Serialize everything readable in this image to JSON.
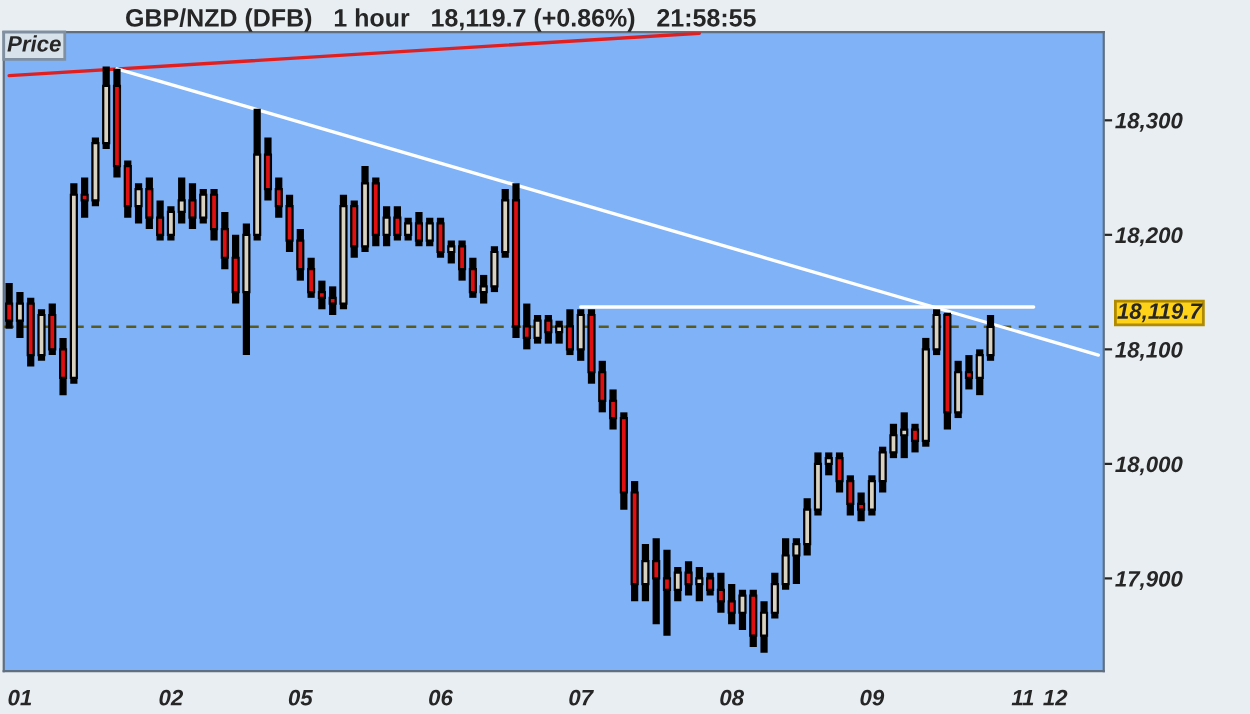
{
  "chart_data": {
    "type": "candlestick",
    "title": "GBP/NZD (DFB)   1 hour   18,119.7 (+0.86%)   21:58:55",
    "annotations": [
      "Price"
    ],
    "categories": [
      null,
      "01",
      null,
      null,
      null,
      null,
      null,
      null,
      null,
      null,
      null,
      null,
      null,
      null,
      null,
      "02",
      null,
      null,
      null,
      null,
      null,
      null,
      null,
      null,
      null,
      null,
      null,
      "05",
      null,
      null,
      null,
      null,
      null,
      null,
      null,
      null,
      null,
      null,
      null,
      null,
      "06",
      null,
      null,
      null,
      null,
      null,
      null,
      null,
      null,
      null,
      null,
      null,
      null,
      "07",
      null,
      null,
      null,
      null,
      null,
      null,
      null,
      null,
      null,
      null,
      null,
      null,
      null,
      "08",
      null,
      null,
      null,
      null,
      null,
      null,
      null,
      null,
      null,
      null,
      null,
      null,
      "09",
      null,
      null,
      null,
      null,
      null,
      null,
      null,
      null,
      null,
      null,
      null,
      null,
      null,
      "11",
      null,
      null,
      "12",
      null,
      null,
      null,
      null
    ],
    "ohlc": [
      [
        18140,
        18158,
        18118,
        18125
      ],
      [
        18125,
        18150,
        18110,
        18140
      ],
      [
        18140,
        18145,
        18085,
        18095
      ],
      [
        18095,
        18135,
        18090,
        18130
      ],
      [
        18130,
        18140,
        18095,
        18100
      ],
      [
        18100,
        18110,
        18060,
        18075
      ],
      [
        18075,
        18245,
        18070,
        18235
      ],
      [
        18235,
        18250,
        18215,
        18230
      ],
      [
        18230,
        18285,
        18225,
        18280
      ],
      [
        18280,
        18347,
        18275,
        18330
      ],
      [
        18330,
        18345,
        18250,
        18260
      ],
      [
        18260,
        18265,
        18215,
        18225
      ],
      [
        18225,
        18245,
        18210,
        18240
      ],
      [
        18240,
        18250,
        18205,
        18215
      ],
      [
        18215,
        18230,
        18195,
        18200
      ],
      [
        18200,
        18225,
        18195,
        18220
      ],
      [
        18220,
        18250,
        18210,
        18230
      ],
      [
        18230,
        18245,
        18205,
        18215
      ],
      [
        18215,
        18240,
        18210,
        18235
      ],
      [
        18235,
        18240,
        18195,
        18205
      ],
      [
        18205,
        18220,
        18170,
        18180
      ],
      [
        18180,
        18200,
        18140,
        18150
      ],
      [
        18150,
        18210,
        18095,
        18200
      ],
      [
        18200,
        18310,
        18195,
        18270
      ],
      [
        18270,
        18285,
        18230,
        18240
      ],
      [
        18240,
        18250,
        18215,
        18225
      ],
      [
        18225,
        18235,
        18185,
        18195
      ],
      [
        18195,
        18205,
        18160,
        18170
      ],
      [
        18170,
        18180,
        18145,
        18150
      ],
      [
        18150,
        18160,
        18135,
        18145
      ],
      [
        18145,
        18155,
        18130,
        18140
      ],
      [
        18140,
        18235,
        18135,
        18225
      ],
      [
        18225,
        18230,
        18180,
        18190
      ],
      [
        18190,
        18260,
        18185,
        18245
      ],
      [
        18245,
        18250,
        18190,
        18200
      ],
      [
        18200,
        18225,
        18190,
        18215
      ],
      [
        18215,
        18225,
        18195,
        18200
      ],
      [
        18200,
        18215,
        18195,
        18210
      ],
      [
        18210,
        18220,
        18190,
        18195
      ],
      [
        18195,
        18215,
        18190,
        18210
      ],
      [
        18210,
        18215,
        18180,
        18185
      ],
      [
        18185,
        18195,
        18175,
        18190
      ],
      [
        18190,
        18195,
        18160,
        18170
      ],
      [
        18170,
        18180,
        18145,
        18150
      ],
      [
        18150,
        18165,
        18140,
        18155
      ],
      [
        18155,
        18190,
        18150,
        18185
      ],
      [
        18185,
        18240,
        18180,
        18230
      ],
      [
        18230,
        18245,
        18110,
        18120
      ],
      [
        18120,
        18140,
        18100,
        18110
      ],
      [
        18110,
        18130,
        18105,
        18125
      ],
      [
        18125,
        18130,
        18105,
        18115
      ],
      [
        18115,
        18125,
        18105,
        18120
      ],
      [
        18120,
        18135,
        18095,
        18100
      ],
      [
        18100,
        18135,
        18090,
        18130
      ],
      [
        18130,
        18135,
        18070,
        18080
      ],
      [
        18080,
        18090,
        18045,
        18055
      ],
      [
        18055,
        18065,
        18030,
        18040
      ],
      [
        18040,
        18045,
        17960,
        17975
      ],
      [
        17975,
        17985,
        17880,
        17895
      ],
      [
        17895,
        17930,
        17880,
        17915
      ],
      [
        17915,
        17935,
        17860,
        17900
      ],
      [
        17900,
        17925,
        17850,
        17890
      ],
      [
        17890,
        17910,
        17880,
        17905
      ],
      [
        17905,
        17915,
        17885,
        17895
      ],
      [
        17895,
        17910,
        17880,
        17900
      ],
      [
        17900,
        17905,
        17885,
        17890
      ],
      [
        17890,
        17905,
        17870,
        17880
      ],
      [
        17880,
        17895,
        17860,
        17870
      ],
      [
        17870,
        17890,
        17855,
        17885
      ],
      [
        17885,
        17890,
        17840,
        17850
      ],
      [
        17850,
        17880,
        17835,
        17870
      ],
      [
        17870,
        17905,
        17865,
        17895
      ],
      [
        17895,
        17935,
        17890,
        17920
      ],
      [
        17920,
        17935,
        17895,
        17930
      ],
      [
        17930,
        17970,
        17920,
        17960
      ],
      [
        17960,
        18010,
        17955,
        18000
      ],
      [
        18000,
        18010,
        17990,
        18005
      ],
      [
        18005,
        18010,
        17975,
        17985
      ],
      [
        17985,
        17990,
        17955,
        17965
      ],
      [
        17965,
        17975,
        17950,
        17960
      ],
      [
        17960,
        17990,
        17955,
        17985
      ],
      [
        17985,
        18015,
        17975,
        18010
      ],
      [
        18010,
        18035,
        18005,
        18025
      ],
      [
        18025,
        18045,
        18005,
        18030
      ],
      [
        18030,
        18035,
        18010,
        18020
      ],
      [
        18020,
        18110,
        18015,
        18100
      ],
      [
        18100,
        18135,
        18095,
        18130
      ],
      [
        18130,
        18132,
        18030,
        18045
      ],
      [
        18045,
        18090,
        18040,
        18080
      ],
      [
        18080,
        18095,
        18065,
        18075
      ],
      [
        18075,
        18100,
        18060,
        18095
      ],
      [
        18095,
        18130,
        18090,
        18119.7
      ],
      null,
      null,
      null,
      null,
      null,
      null,
      null,
      null,
      null,
      null
    ],
    "ylim": [
      17819,
      18377
    ],
    "yticks": [
      {
        "value": 17900,
        "label": "17,900"
      },
      {
        "value": 18000,
        "label": "18,000"
      },
      {
        "value": 18100,
        "label": "18,100"
      },
      {
        "value": 18200,
        "label": "18,200"
      },
      {
        "value": 18300,
        "label": "18,300"
      }
    ],
    "ref_lines": [
      {
        "axis": "y",
        "value": 18119.7,
        "label": "18,119.7",
        "color": "#5a5a20",
        "line_style": "dashed"
      }
    ],
    "series": [
      {
        "type": "line",
        "values": [
          18339,
          null,
          null,
          null,
          null,
          null,
          null,
          null,
          null,
          null,
          null,
          null,
          null,
          null,
          null,
          null,
          null,
          null,
          null,
          null,
          null,
          null,
          null,
          null,
          null,
          null,
          null,
          null,
          null,
          null,
          null,
          null,
          null,
          null,
          null,
          null,
          null,
          null,
          null,
          null,
          null,
          null,
          null,
          null,
          null,
          null,
          null,
          null,
          null,
          null,
          null,
          null,
          null,
          null,
          null,
          null,
          null,
          null,
          null,
          null,
          null,
          null,
          null,
          null,
          18376,
          null,
          null,
          null,
          null,
          null,
          null,
          null,
          null,
          null,
          null,
          null,
          null,
          null,
          null,
          null,
          null,
          null,
          null,
          null,
          null,
          null,
          null,
          null,
          null,
          null,
          null,
          null,
          null,
          null,
          null,
          null,
          null,
          null,
          null,
          null,
          null,
          null
        ],
        "color": "#e02020"
      },
      {
        "type": "line",
        "values": [
          null,
          null,
          null,
          null,
          null,
          null,
          null,
          null,
          null,
          null,
          18345,
          null,
          null,
          null,
          null,
          null,
          null,
          null,
          null,
          null,
          null,
          null,
          null,
          null,
          null,
          null,
          null,
          null,
          null,
          null,
          null,
          null,
          null,
          null,
          null,
          null,
          null,
          null,
          null,
          null,
          null,
          null,
          null,
          null,
          null,
          null,
          null,
          null,
          null,
          null,
          null,
          null,
          null,
          null,
          null,
          null,
          null,
          null,
          null,
          null,
          null,
          null,
          null,
          null,
          null,
          null,
          null,
          null,
          null,
          null,
          null,
          null,
          null,
          null,
          null,
          null,
          null,
          null,
          null,
          null,
          null,
          null,
          null,
          null,
          null,
          null,
          null,
          null,
          null,
          null,
          null,
          null,
          null,
          null,
          null,
          null,
          null,
          null,
          null,
          null,
          null,
          18095
        ],
        "color": "#ffffff"
      },
      {
        "type": "line",
        "values": [
          null,
          null,
          null,
          null,
          null,
          null,
          null,
          null,
          null,
          null,
          null,
          null,
          null,
          null,
          null,
          null,
          null,
          null,
          null,
          null,
          null,
          null,
          null,
          null,
          null,
          null,
          null,
          null,
          null,
          null,
          null,
          null,
          null,
          null,
          null,
          null,
          null,
          null,
          null,
          null,
          null,
          null,
          null,
          null,
          null,
          null,
          null,
          null,
          null,
          null,
          null,
          null,
          null,
          18137,
          null,
          null,
          null,
          null,
          null,
          null,
          null,
          null,
          null,
          null,
          null,
          null,
          null,
          null,
          null,
          null,
          null,
          null,
          null,
          null,
          null,
          null,
          null,
          null,
          null,
          null,
          null,
          null,
          null,
          null,
          null,
          null,
          null,
          null,
          null,
          null,
          null,
          null,
          null,
          null,
          null,
          18137,
          null,
          null,
          null,
          null,
          null,
          null
        ],
        "color": "#ffffff"
      }
    ],
    "grid": false,
    "legend": false
  }
}
